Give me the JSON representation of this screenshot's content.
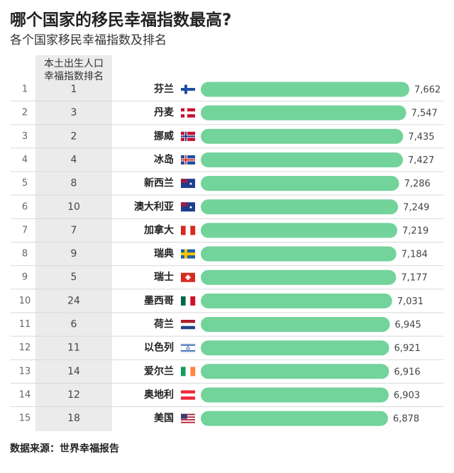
{
  "chart_data": {
    "type": "bar",
    "orientation": "horizontal",
    "title": "哪个国家的移民幸福指数最高?",
    "subtitle": "各个国家移民幸福指数及排名",
    "native_rank_header": [
      "本土出生人口",
      "幸福指数排名"
    ],
    "ranks": [
      1,
      2,
      3,
      4,
      5,
      6,
      7,
      8,
      9,
      10,
      11,
      12,
      13,
      14,
      15
    ],
    "native_ranks": [
      1,
      3,
      2,
      4,
      8,
      10,
      7,
      9,
      5,
      24,
      6,
      11,
      14,
      12,
      18
    ],
    "categories": [
      "芬兰",
      "丹麦",
      "挪威",
      "冰岛",
      "新西兰",
      "澳大利亚",
      "加拿大",
      "瑞典",
      "瑞士",
      "墨西哥",
      "荷兰",
      "以色列",
      "爱尔兰",
      "奥地利",
      "美国"
    ],
    "values": [
      7662,
      7547,
      7435,
      7427,
      7286,
      7249,
      7219,
      7184,
      7177,
      7031,
      6945,
      6921,
      6916,
      6903,
      6878
    ],
    "value_labels": [
      "7,662",
      "7,547",
      "7,435",
      "7,427",
      "7,286",
      "7,249",
      "7,219",
      "7,184",
      "7,177",
      "7,031",
      "6,945",
      "6,921",
      "6,916",
      "6,903",
      "6,878"
    ],
    "color": "#72d39b",
    "xlim": [
      0,
      8000
    ],
    "source": "数据来源：世界幸福报告"
  }
}
